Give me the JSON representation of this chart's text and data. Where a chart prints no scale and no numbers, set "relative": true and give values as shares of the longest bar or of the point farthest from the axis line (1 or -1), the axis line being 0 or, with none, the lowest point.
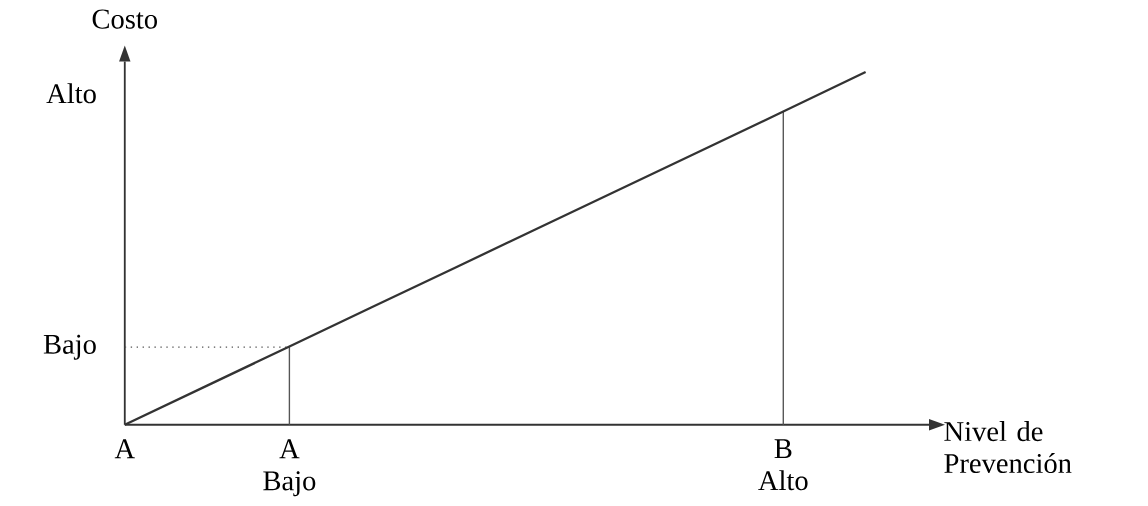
{
  "chart_data": {
    "type": "line",
    "xlabel": "Nivel de Prevención",
    "ylabel": "Costo",
    "relative": true,
    "categories": [
      "A",
      null,
      "A Bajo",
      null,
      null,
      null,
      null,
      null,
      "B Alto",
      null
    ],
    "values": [
      0,
      0.111,
      0.222,
      0.333,
      0.444,
      0.555,
      0.666,
      0.777,
      0.888,
      1
    ],
    "color": "#333333",
    "ref_lines": [
      {
        "axis": "y",
        "value": 0.22,
        "line_style": "dotted",
        "color": "#555555"
      },
      {
        "axis": "x",
        "value": "A Bajo",
        "line_style": "solid",
        "color": "#555555"
      },
      {
        "axis": "x",
        "value": "B Alto",
        "line_style": "solid",
        "color": "#555555"
      }
    ],
    "annotations": [
      "Bajo",
      "Alto"
    ]
  }
}
